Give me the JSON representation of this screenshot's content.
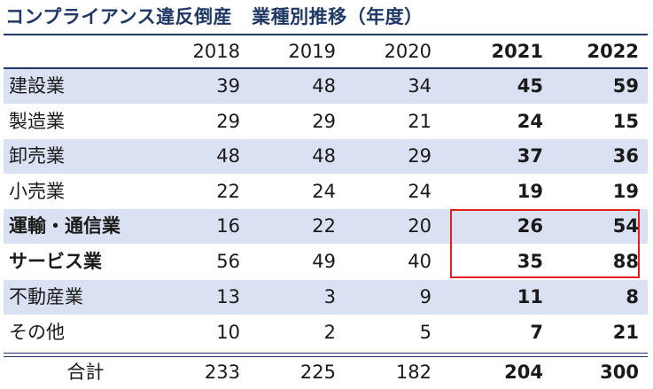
{
  "title": "コンプライアンス違反倒産",
  "subtitle": "業種別推移（年度）",
  "chart_data": {
    "type": "table",
    "columns": [
      "2018",
      "2019",
      "2020",
      "2021",
      "2022"
    ],
    "bold_columns": [
      "2021",
      "2022"
    ],
    "rows": [
      {
        "label": "建設業",
        "values": [
          "39",
          "48",
          "34",
          "45",
          "59"
        ]
      },
      {
        "label": "製造業",
        "values": [
          "29",
          "29",
          "21",
          "24",
          "15"
        ]
      },
      {
        "label": "卸売業",
        "values": [
          "48",
          "48",
          "29",
          "37",
          "36"
        ]
      },
      {
        "label": "小売業",
        "values": [
          "22",
          "24",
          "24",
          "19",
          "19"
        ]
      },
      {
        "label": "運輸・通信業",
        "values": [
          "16",
          "22",
          "20",
          "26",
          "54"
        ],
        "bold_label": true
      },
      {
        "label": "サービス業",
        "values": [
          "56",
          "49",
          "40",
          "35",
          "88"
        ],
        "bold_label": true
      },
      {
        "label": "不動産業",
        "values": [
          "13",
          "3",
          "9",
          "11",
          "8"
        ]
      },
      {
        "label": "その他",
        "values": [
          "10",
          "2",
          "5",
          "7",
          "21"
        ]
      }
    ],
    "total": {
      "label": "合計",
      "values": [
        "233",
        "225",
        "182",
        "204",
        "300"
      ]
    },
    "highlight": {
      "rows": [
        "運輸・通信業",
        "サービス業"
      ],
      "columns": [
        "2021",
        "2022"
      ],
      "color": "#e01e1e"
    },
    "colors": {
      "title": "#1f3864",
      "band": "#d9e1f2",
      "rule": "#1f3864"
    }
  }
}
